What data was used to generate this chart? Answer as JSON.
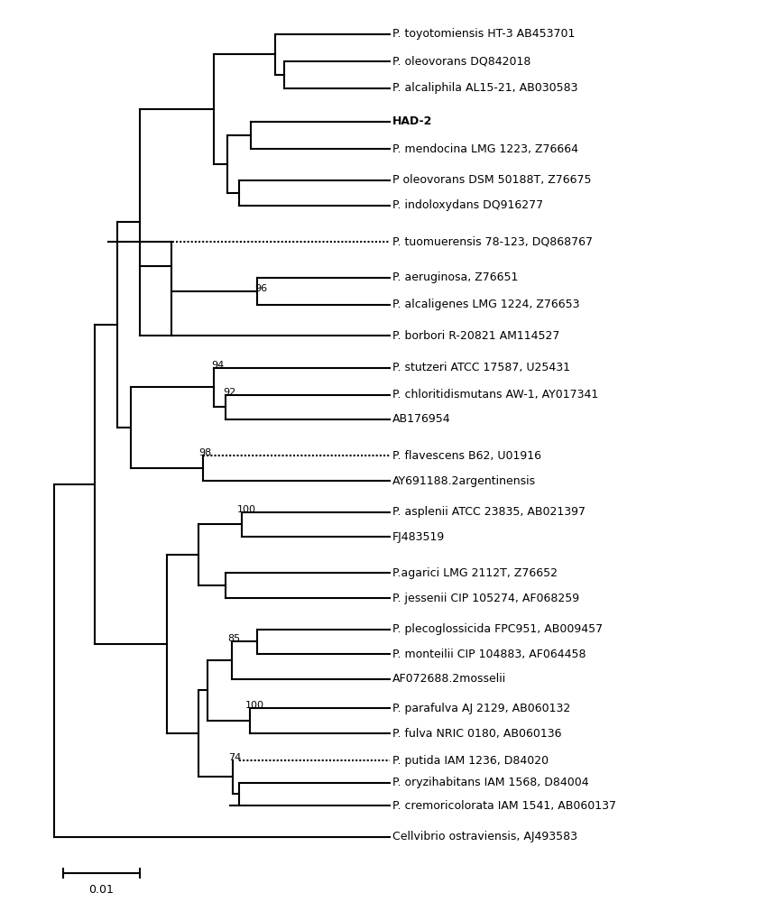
{
  "taxa": [
    "P. toyotomiensis HT-3 AB453701",
    "P. oleovorans DQ842018",
    "P. alcaliphila AL15-21, AB030583",
    "HAD-2",
    "P. mendocina LMG 1223, Z76664",
    "P oleovorans DSM 50188T, Z76675",
    "P. indoloxydans DQ916277",
    "P. tuomuerensis 78-123, DQ868767",
    "P. aeruginosa, Z76651",
    "P. alcaligenes LMG 1224, Z76653",
    "P. borbori R-20821 AM114527",
    "P. stutzeri ATCC 17587, U25431",
    "P. chloritidismutans AW-1, AY017341",
    "AB176954",
    "P. flavescens B62, U01916",
    "AY691188.2argentinensis",
    "P. asplenii ATCC 23835, AB021397",
    "FJ483519",
    "P.agarici LMG 2112T, Z76652",
    "P. jessenii CIP 105274, AF068259",
    "P. plecoglossicida FPC951, AB009457",
    "P. monteilii CIP 104883, AF064458",
    "AF072688.2mosselii",
    "P. parafulva AJ 2129, AB060132",
    "P. fulva NRIC 0180, AB060136",
    "P. putida IAM 1236, D84020",
    "P. oryzihabitans IAM 1568, D84004",
    "P. cremoricolorata IAM 1541, AB060137",
    "Cellvibrio ostraviensis, AJ493583"
  ],
  "background_color": "#ffffff",
  "line_color": "#000000",
  "text_color": "#000000",
  "bold_taxa": [
    "HAD-2"
  ],
  "scale_bar_label": "0.01"
}
